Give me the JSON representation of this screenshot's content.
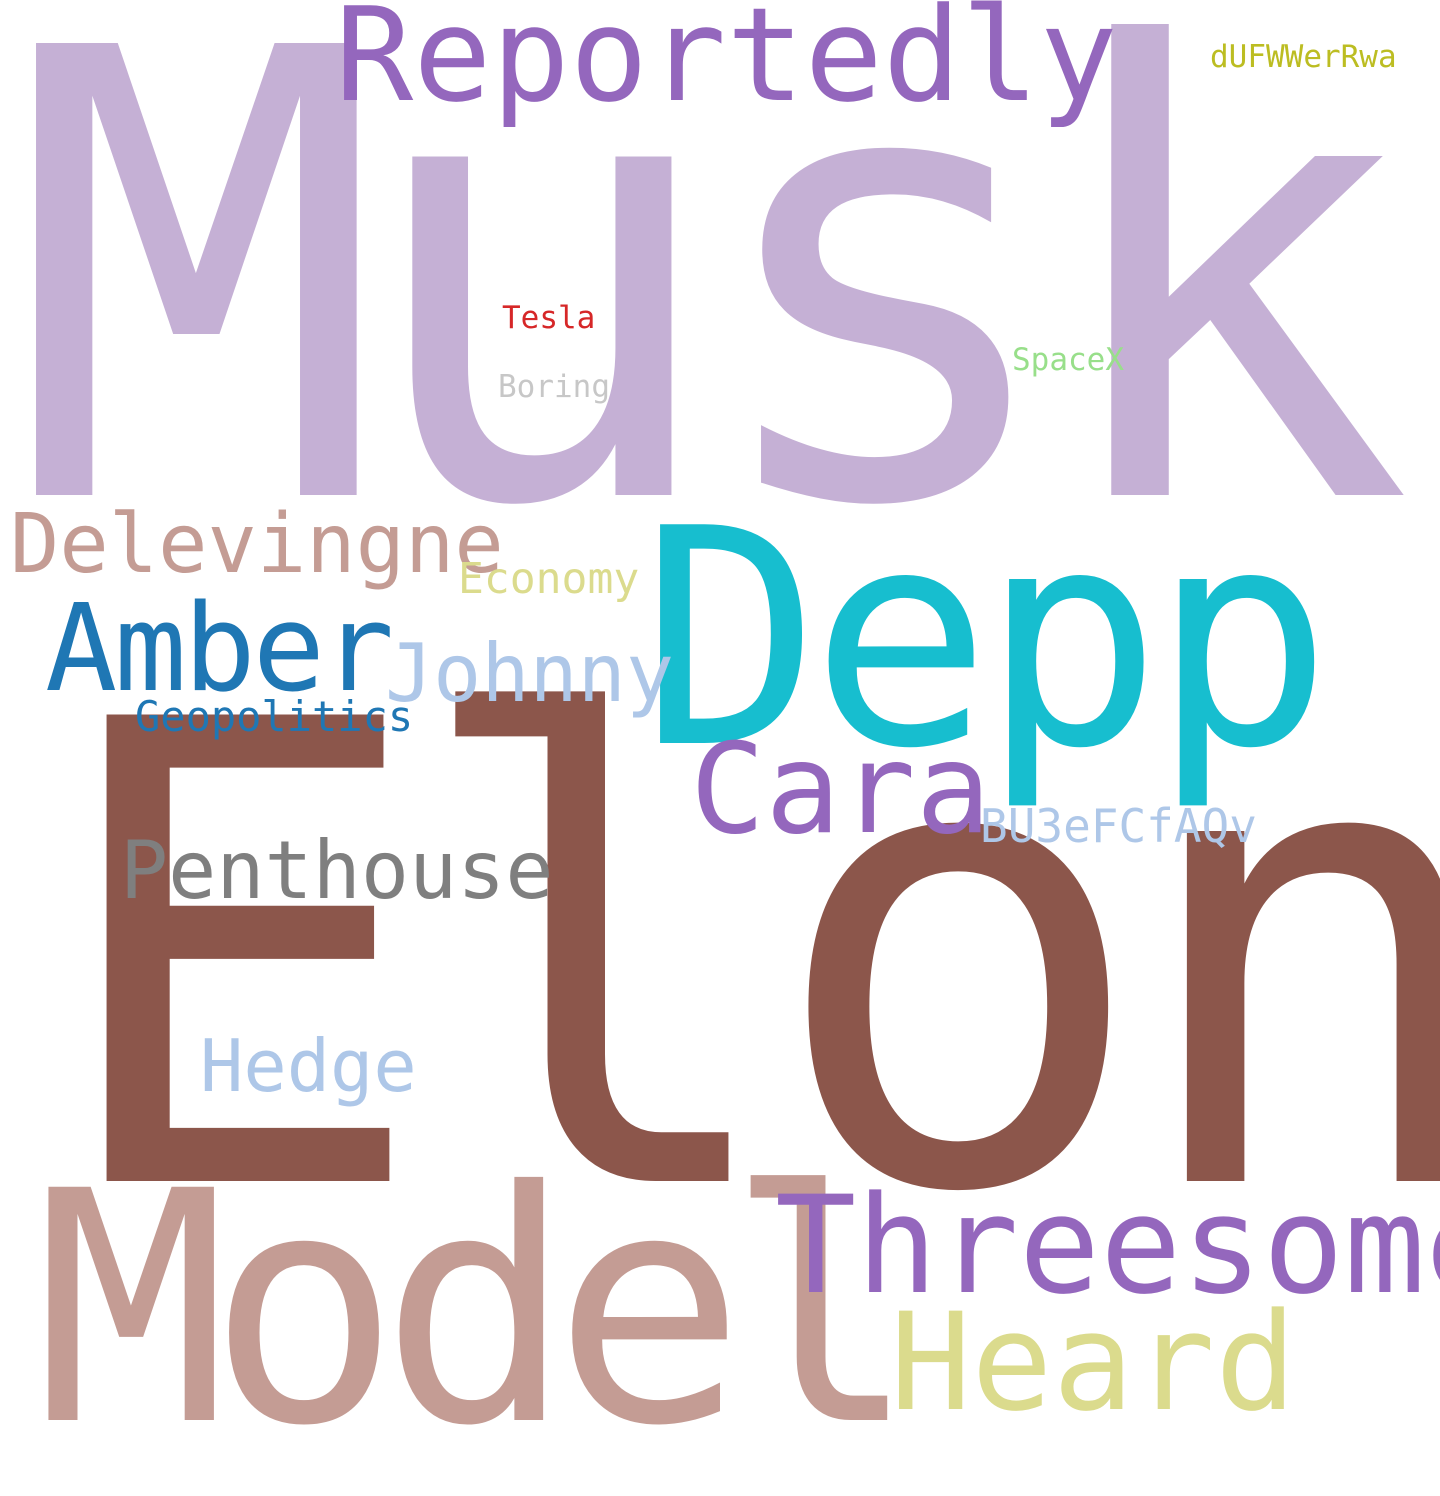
{
  "words": {
    "musk": {
      "text": "Musk",
      "color": "#c5b0d5"
    },
    "elon": {
      "text": "Elon",
      "color": "#8c564b"
    },
    "model": {
      "text": "Model",
      "color": "#c49c94"
    },
    "depp": {
      "text": "Depp",
      "color": "#17becf"
    },
    "reportedly": {
      "text": "Reportedly",
      "color": "#9467bd"
    },
    "threesome": {
      "text": "Threesome",
      "color": "#9467bd"
    },
    "heard": {
      "text": "Heard",
      "color": "#dbdb8d"
    },
    "cara": {
      "text": "Cara",
      "color": "#9467bd"
    },
    "amber": {
      "text": "Amber",
      "color": "#1f77b4"
    },
    "delevingne": {
      "text": "Delevingne",
      "color": "#c49c94"
    },
    "johnny": {
      "text": "Johnny",
      "color": "#aec7e8"
    },
    "penthouse": {
      "text": "Penthouse",
      "color": "#7f7f7f"
    },
    "hedge": {
      "text": "Hedge",
      "color": "#aec7e8"
    },
    "geopolitics": {
      "text": "Geopolitics",
      "color": "#1f77b4"
    },
    "economy": {
      "text": "Economy",
      "color": "#dbdb8d"
    },
    "bu3efcfaqv": {
      "text": "BU3eFCfAQv",
      "color": "#aec7e8"
    },
    "dufwwerrwa": {
      "text": "dUFWWerRwa",
      "color": "#bcbd22"
    },
    "tesla": {
      "text": "Tesla",
      "color": "#d62728"
    },
    "spacex": {
      "text": "SpaceX",
      "color": "#98df8a"
    },
    "boring": {
      "text": "Boring",
      "color": "#c7c7c7"
    }
  }
}
